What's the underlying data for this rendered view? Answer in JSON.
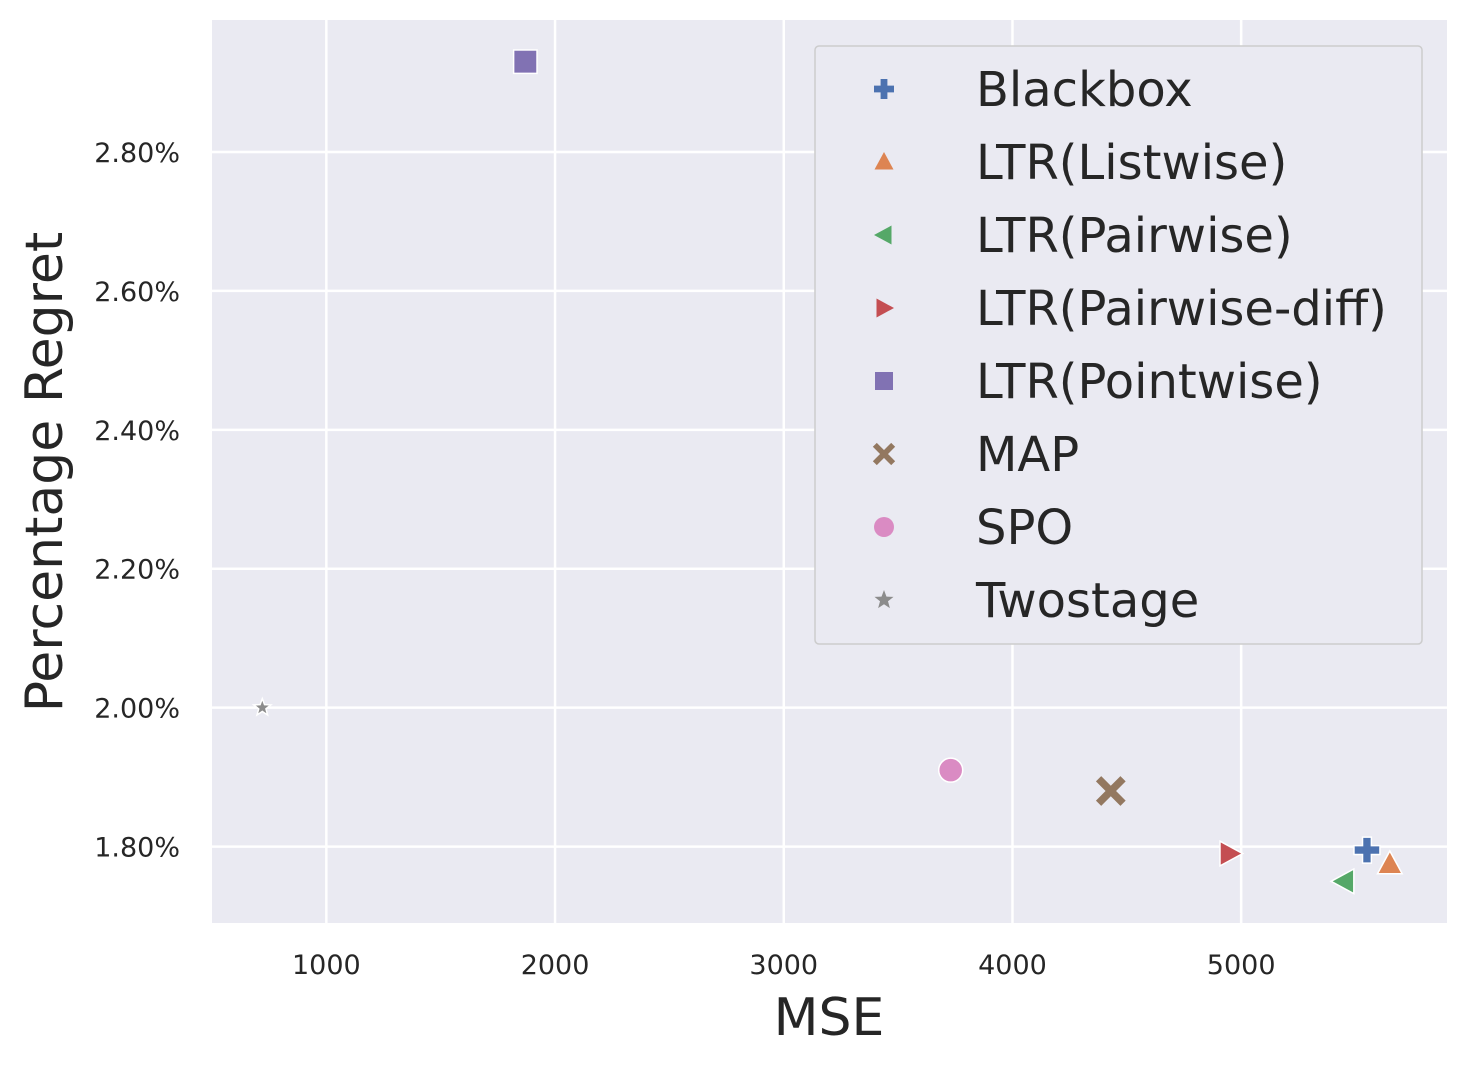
{
  "chart_data": {
    "type": "scatter",
    "xlabel": "MSE",
    "ylabel": "Percentage Regret",
    "xlim": [
      500,
      5900
    ],
    "ylim": [
      1.69,
      2.99
    ],
    "x_ticks": [
      1000,
      2000,
      3000,
      4000,
      5000
    ],
    "x_tick_labels": [
      "1000",
      "2000",
      "3000",
      "4000",
      "5000"
    ],
    "y_ticks": [
      1.8,
      2.0,
      2.2,
      2.4,
      2.6,
      2.8
    ],
    "y_tick_labels": [
      "1.80%",
      "2.00%",
      "2.20%",
      "2.40%",
      "2.60%",
      "2.80%"
    ],
    "grid": true,
    "legend_position": "top-right",
    "background_color": "#eaeaf2",
    "series": [
      {
        "name": "Blackbox",
        "marker": "plus",
        "color": "#4c72b0",
        "x": 5550,
        "y": 1.795
      },
      {
        "name": "LTR(Listwise)",
        "marker": "triangle-up",
        "color": "#dd8452",
        "x": 5650,
        "y": 1.775
      },
      {
        "name": "LTR(Pairwise)",
        "marker": "triangle-left",
        "color": "#55a868",
        "x": 5450,
        "y": 1.75
      },
      {
        "name": "LTR(Pairwise-diff)",
        "marker": "triangle-right",
        "color": "#c44e52",
        "x": 4950,
        "y": 1.79
      },
      {
        "name": "LTR(Pointwise)",
        "marker": "square",
        "color": "#8172b3",
        "x": 1870,
        "y": 2.93
      },
      {
        "name": "MAP",
        "marker": "x",
        "color": "#937860",
        "x": 4430,
        "y": 1.88
      },
      {
        "name": "SPO",
        "marker": "circle",
        "color": "#da8bc3",
        "x": 3730,
        "y": 1.91
      },
      {
        "name": "Twostage",
        "marker": "star",
        "color": "#8c8c8c",
        "x": 720,
        "y": 2.0
      }
    ]
  }
}
